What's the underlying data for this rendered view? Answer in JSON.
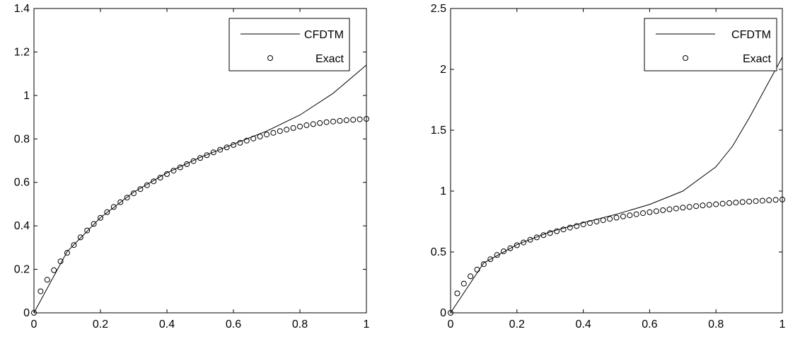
{
  "chart_data": [
    {
      "type": "line",
      "title": "",
      "xlabel": "",
      "ylabel": "",
      "xlim": [
        0,
        1
      ],
      "ylim": [
        0,
        1.4
      ],
      "xticks": [
        0,
        0.2,
        0.4,
        0.6,
        0.8,
        1
      ],
      "yticks": [
        0,
        0.2,
        0.4,
        0.6,
        0.8,
        1,
        1.2,
        1.4
      ],
      "xtick_labels": [
        "0",
        "0.2",
        "0.4",
        "0.6",
        "0.8",
        "1"
      ],
      "ytick_labels": [
        "0",
        "0.2",
        "0.4",
        "0.6",
        "0.8",
        "1",
        "1.2",
        "1.4"
      ],
      "grid": false,
      "legend": "top-right",
      "series": [
        {
          "name": "CFDTM",
          "style": "solid-line",
          "color": "#000000",
          "x": [
            0,
            0.1,
            0.2,
            0.3,
            0.4,
            0.5,
            0.6,
            0.7,
            0.8,
            0.9,
            1.0
          ],
          "y": [
            0,
            0.282,
            0.438,
            0.555,
            0.644,
            0.715,
            0.776,
            0.836,
            0.91,
            1.01,
            1.14
          ]
        },
        {
          "name": "Exact",
          "style": "circle-markers",
          "color": "#000000",
          "x": [
            0,
            0.02,
            0.04,
            0.06,
            0.08,
            0.1,
            0.12,
            0.14,
            0.16,
            0.18,
            0.2,
            0.22,
            0.24,
            0.26,
            0.28,
            0.3,
            0.32,
            0.34,
            0.36,
            0.38,
            0.4,
            0.42,
            0.44,
            0.46,
            0.48,
            0.5,
            0.52,
            0.54,
            0.56,
            0.58,
            0.6,
            0.62,
            0.64,
            0.66,
            0.68,
            0.7,
            0.72,
            0.74,
            0.76,
            0.78,
            0.8,
            0.82,
            0.84,
            0.86,
            0.88,
            0.9,
            0.92,
            0.94,
            0.96,
            0.98,
            1.0
          ],
          "y": [
            0,
            0.099,
            0.152,
            0.196,
            0.237,
            0.276,
            0.312,
            0.347,
            0.379,
            0.409,
            0.437,
            0.463,
            0.487,
            0.509,
            0.53,
            0.55,
            0.569,
            0.587,
            0.605,
            0.622,
            0.638,
            0.654,
            0.669,
            0.684,
            0.698,
            0.712,
            0.725,
            0.738,
            0.75,
            0.761,
            0.772,
            0.782,
            0.792,
            0.802,
            0.811,
            0.82,
            0.828,
            0.836,
            0.843,
            0.85,
            0.857,
            0.863,
            0.868,
            0.873,
            0.877,
            0.88,
            0.883,
            0.886,
            0.888,
            0.89,
            0.892
          ]
        }
      ]
    },
    {
      "type": "line",
      "title": "",
      "xlabel": "",
      "ylabel": "",
      "xlim": [
        0,
        1
      ],
      "ylim": [
        0,
        2.5
      ],
      "xticks": [
        0,
        0.2,
        0.4,
        0.6,
        0.8,
        1
      ],
      "yticks": [
        0,
        0.5,
        1,
        1.5,
        2,
        2.5
      ],
      "xtick_labels": [
        "0",
        "0.2",
        "0.4",
        "0.6",
        "0.8",
        "1"
      ],
      "ytick_labels": [
        "0",
        "0.5",
        "1",
        "1.5",
        "2",
        "2.5"
      ],
      "grid": false,
      "legend": "top-right",
      "series": [
        {
          "name": "CFDTM",
          "style": "solid-line",
          "color": "#000000",
          "x": [
            0,
            0.1,
            0.2,
            0.3,
            0.4,
            0.5,
            0.6,
            0.7,
            0.8,
            0.85,
            0.9,
            0.95,
            1.0
          ],
          "y": [
            0,
            0.41,
            0.56,
            0.665,
            0.74,
            0.81,
            0.89,
            1.0,
            1.2,
            1.37,
            1.6,
            1.85,
            2.1
          ]
        },
        {
          "name": "Exact",
          "style": "circle-markers",
          "color": "#000000",
          "x": [
            0,
            0.02,
            0.04,
            0.06,
            0.08,
            0.1,
            0.12,
            0.14,
            0.16,
            0.18,
            0.2,
            0.22,
            0.24,
            0.26,
            0.28,
            0.3,
            0.32,
            0.34,
            0.36,
            0.38,
            0.4,
            0.42,
            0.44,
            0.46,
            0.48,
            0.5,
            0.52,
            0.54,
            0.56,
            0.58,
            0.6,
            0.62,
            0.64,
            0.66,
            0.68,
            0.7,
            0.72,
            0.74,
            0.76,
            0.78,
            0.8,
            0.82,
            0.84,
            0.86,
            0.88,
            0.9,
            0.92,
            0.94,
            0.96,
            0.98,
            1.0
          ],
          "y": [
            0,
            0.16,
            0.24,
            0.3,
            0.355,
            0.4,
            0.44,
            0.475,
            0.505,
            0.53,
            0.555,
            0.578,
            0.6,
            0.62,
            0.638,
            0.655,
            0.67,
            0.685,
            0.7,
            0.713,
            0.726,
            0.738,
            0.75,
            0.761,
            0.772,
            0.782,
            0.792,
            0.801,
            0.81,
            0.819,
            0.827,
            0.835,
            0.843,
            0.85,
            0.857,
            0.864,
            0.87,
            0.876,
            0.882,
            0.887,
            0.892,
            0.897,
            0.902,
            0.906,
            0.91,
            0.914,
            0.918,
            0.921,
            0.925,
            0.928,
            0.931
          ]
        }
      ]
    }
  ]
}
